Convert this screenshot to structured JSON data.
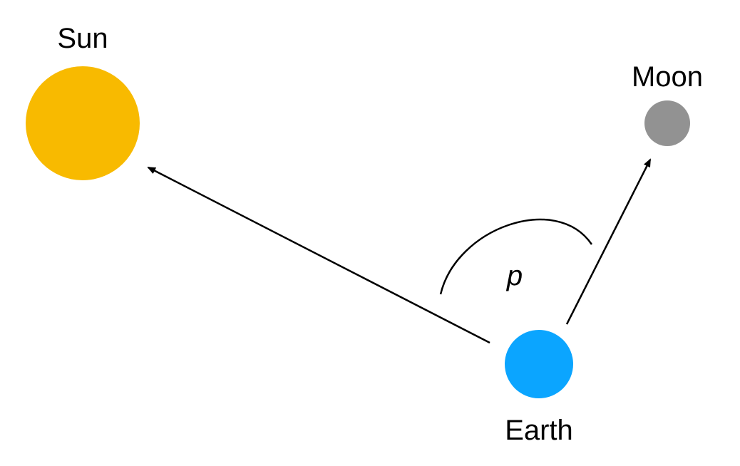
{
  "bodies": {
    "sun": {
      "label": "Sun",
      "color": "#F8BA00"
    },
    "moon": {
      "label": "Moon",
      "color": "#929292"
    },
    "earth": {
      "label": "Earth",
      "color": "#0BA5FF"
    }
  },
  "angle": {
    "label": "p"
  },
  "arrows": [
    {
      "from": "earth",
      "to": "sun"
    },
    {
      "from": "earth",
      "to": "moon"
    }
  ]
}
